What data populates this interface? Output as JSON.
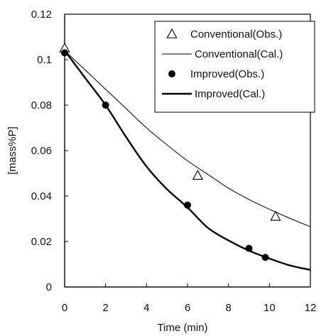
{
  "chart_data": {
    "type": "line",
    "xlabel": "Time (min)",
    "ylabel": "[mass%P]",
    "xlim": [
      0,
      12
    ],
    "ylim": [
      0,
      0.12
    ],
    "x_ticks": [
      "0",
      "2",
      "4",
      "6",
      "8",
      "10",
      "12"
    ],
    "y_ticks": [
      "0",
      "0.02",
      "0.04",
      "0.06",
      "0.08",
      "0.1",
      "0.12"
    ],
    "grid": false,
    "legend_position": "top-right",
    "series": [
      {
        "name": "Conventional(Obs.)",
        "style": "triangle-marker",
        "x": [
          0,
          6.5,
          10.3
        ],
        "y": [
          0.105,
          0.049,
          0.031
        ]
      },
      {
        "name": "Conventional(Cal.)",
        "style": "thin-line",
        "x": [
          0,
          1,
          2,
          3,
          4,
          5,
          6,
          7,
          8,
          9,
          10,
          11,
          12
        ],
        "y": [
          0.104,
          0.0955,
          0.087,
          0.0785,
          0.07,
          0.0625,
          0.0555,
          0.0495,
          0.0435,
          0.0385,
          0.0342,
          0.0302,
          0.0265
        ]
      },
      {
        "name": "Improved(Obs.)",
        "style": "filled-circle-marker",
        "x": [
          0,
          2,
          6,
          9,
          9.8
        ],
        "y": [
          0.103,
          0.08,
          0.036,
          0.017,
          0.013
        ]
      },
      {
        "name": "Improved(Cal.)",
        "style": "thick-line",
        "x": [
          0,
          1,
          2,
          3,
          4,
          5,
          6,
          7,
          8,
          9,
          10,
          11,
          12
        ],
        "y": [
          0.104,
          0.092,
          0.08,
          0.066,
          0.053,
          0.043,
          0.035,
          0.026,
          0.0205,
          0.016,
          0.0125,
          0.0095,
          0.0075
        ]
      }
    ]
  }
}
